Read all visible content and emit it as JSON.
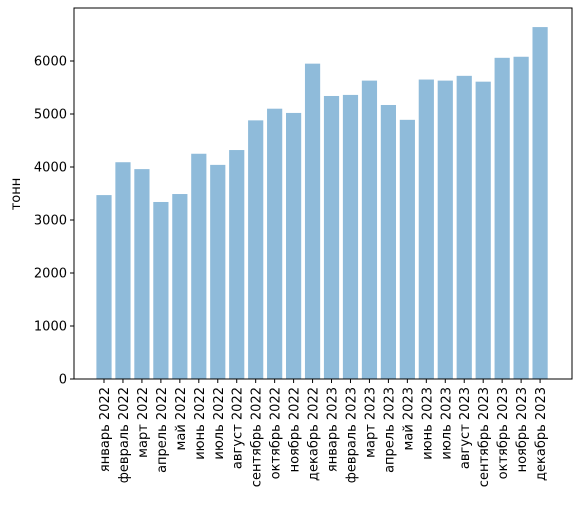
{
  "chart_data": {
    "type": "bar",
    "title": "",
    "xlabel": "",
    "ylabel": "тонн",
    "ylim": [
      0,
      7000
    ],
    "yticks": [
      0,
      1000,
      2000,
      3000,
      4000,
      5000,
      6000
    ],
    "grid": false,
    "legend": false,
    "bar_color": "#8fbbda",
    "categories": [
      "январь 2022",
      "февраль 2022",
      "март 2022",
      "апрель 2022",
      "май 2022",
      "июнь 2022",
      "июль 2022",
      "август 2022",
      "сентябрь 2022",
      "октябрь 2022",
      "ноябрь 2022",
      "декабрь 2022",
      "январь 2023",
      "февраль 2023",
      "март 2023",
      "апрель 2023",
      "май 2023",
      "июнь 2023",
      "июль 2023",
      "август 2023",
      "сентябрь 2023",
      "октябрь 2023",
      "ноябрь 2023",
      "декабрь 2023"
    ],
    "values": [
      3470,
      4090,
      3960,
      3340,
      3490,
      4250,
      4040,
      4320,
      4880,
      5100,
      5020,
      5950,
      5340,
      5360,
      5630,
      5170,
      4890,
      5650,
      5630,
      5720,
      5610,
      6060,
      6080,
      6640
    ]
  }
}
